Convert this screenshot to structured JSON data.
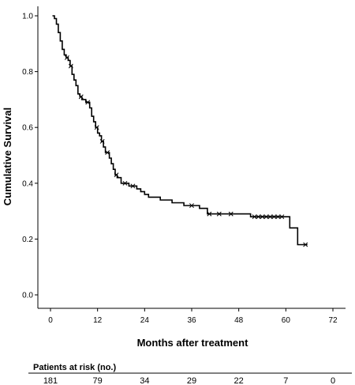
{
  "chart_data": {
    "type": "line",
    "title": "",
    "xlabel": "Months after treatment",
    "ylabel": "Cumulative Survival",
    "xlim": [
      0,
      72
    ],
    "ylim": [
      0,
      1.0
    ],
    "x_ticks": [
      0,
      12,
      24,
      36,
      48,
      60,
      72
    ],
    "y_ticks": [
      "0.0",
      "0.2",
      "0.4",
      "0.6",
      "0.8",
      "1.0"
    ],
    "grid": false,
    "series": [
      {
        "points": [
          [
            0.5,
            1.0
          ],
          [
            1.0,
            0.99
          ],
          [
            1.5,
            0.97
          ],
          [
            2.0,
            0.94
          ],
          [
            2.5,
            0.91
          ],
          [
            3.0,
            0.88
          ],
          [
            3.5,
            0.86
          ],
          [
            4.0,
            0.85
          ],
          [
            4.5,
            0.84
          ],
          [
            5.0,
            0.82
          ],
          [
            5.5,
            0.79
          ],
          [
            6.0,
            0.77
          ],
          [
            6.5,
            0.75
          ],
          [
            7.0,
            0.72
          ],
          [
            7.5,
            0.71
          ],
          [
            8.0,
            0.7
          ],
          [
            9.0,
            0.69
          ],
          [
            10.0,
            0.67
          ],
          [
            10.5,
            0.64
          ],
          [
            11.0,
            0.62
          ],
          [
            11.5,
            0.6
          ],
          [
            12.0,
            0.58
          ],
          [
            12.5,
            0.57
          ],
          [
            13.0,
            0.55
          ],
          [
            13.5,
            0.53
          ],
          [
            14.0,
            0.51
          ],
          [
            15.0,
            0.49
          ],
          [
            15.5,
            0.47
          ],
          [
            16.0,
            0.45
          ],
          [
            16.5,
            0.43
          ],
          [
            17.0,
            0.42
          ],
          [
            18.0,
            0.4
          ],
          [
            20.0,
            0.39
          ],
          [
            22.0,
            0.38
          ],
          [
            23.0,
            0.37
          ],
          [
            24.0,
            0.36
          ],
          [
            25.0,
            0.35
          ],
          [
            28.0,
            0.34
          ],
          [
            31.0,
            0.33
          ],
          [
            34.0,
            0.32
          ],
          [
            38.0,
            0.31
          ],
          [
            40.0,
            0.29
          ],
          [
            51.0,
            0.28
          ],
          [
            61.0,
            0.24
          ],
          [
            63.0,
            0.18
          ],
          [
            65.5,
            0.18
          ]
        ],
        "censored": [
          [
            4.2,
            0.85
          ],
          [
            5.2,
            0.82
          ],
          [
            7.8,
            0.71
          ],
          [
            9.5,
            0.69
          ],
          [
            11.8,
            0.6
          ],
          [
            13.2,
            0.55
          ],
          [
            14.5,
            0.51
          ],
          [
            16.8,
            0.43
          ],
          [
            19.0,
            0.4
          ],
          [
            21.0,
            0.39
          ],
          [
            36.0,
            0.32
          ],
          [
            40.5,
            0.29
          ],
          [
            43.0,
            0.29
          ],
          [
            46.0,
            0.29
          ],
          [
            52.0,
            0.28
          ],
          [
            53.0,
            0.28
          ],
          [
            54.0,
            0.28
          ],
          [
            55.0,
            0.28
          ],
          [
            56.0,
            0.28
          ],
          [
            57.0,
            0.28
          ],
          [
            58.0,
            0.28
          ],
          [
            59.0,
            0.28
          ],
          [
            65.0,
            0.18
          ]
        ]
      }
    ]
  },
  "risk_table": {
    "title": "Patients at risk (no.)",
    "values": [
      "181",
      "79",
      "34",
      "29",
      "22",
      "7",
      "0"
    ]
  }
}
